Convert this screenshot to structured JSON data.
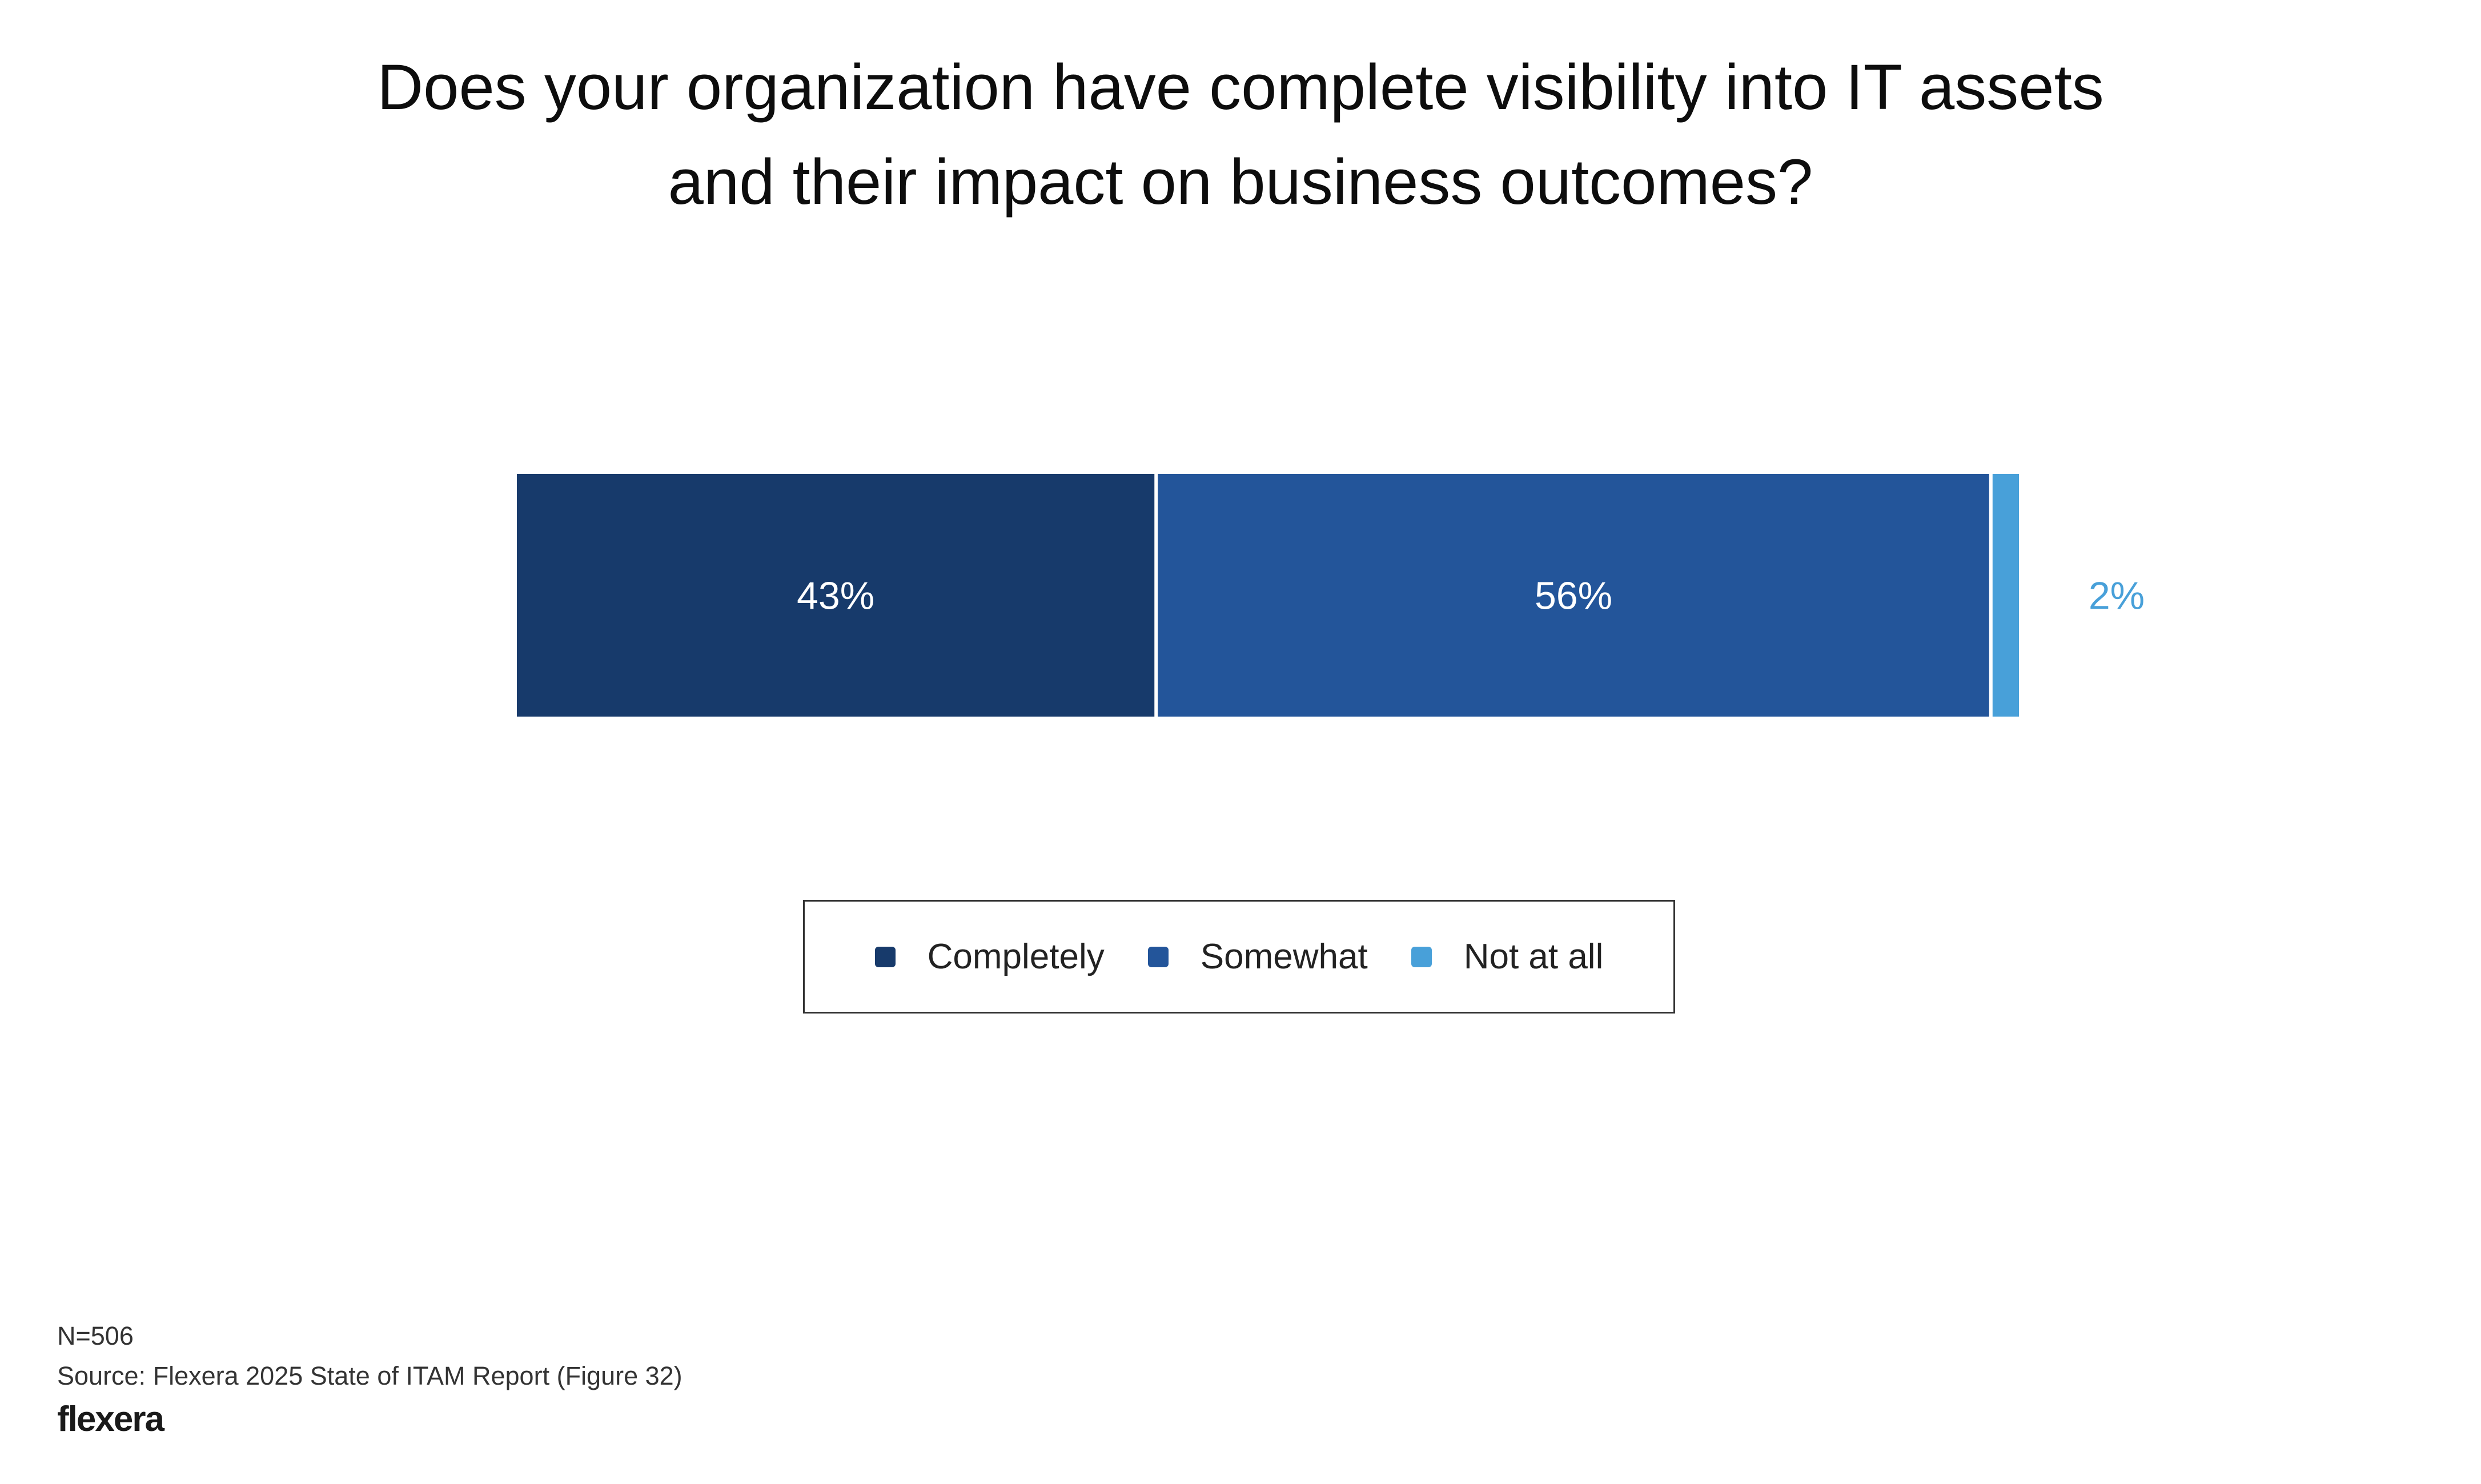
{
  "title_lines": [
    "Does your organization have complete visibility into IT assets",
    "and their impact on business outcomes?"
  ],
  "chart_data": {
    "type": "bar",
    "orientation": "horizontal-stacked",
    "title": "Does your organization have complete visibility into IT assets and their impact on business outcomes?",
    "categories": [
      ""
    ],
    "series": [
      {
        "name": "Completely",
        "values": [
          43
        ],
        "label": "43%",
        "color": "#173a6b"
      },
      {
        "name": "Somewhat",
        "values": [
          56
        ],
        "label": "56%",
        "color": "#23559a"
      },
      {
        "name": "Not at all",
        "values": [
          2
        ],
        "label": "2%",
        "color": "#48a0d9"
      }
    ],
    "xlim": [
      0,
      101
    ],
    "grid": false,
    "legend_position": "bottom-center"
  },
  "footer": {
    "n": "N=506",
    "source": "Source: Flexera 2025 State of ITAM Report (Figure 32)",
    "logo": "flexera"
  }
}
